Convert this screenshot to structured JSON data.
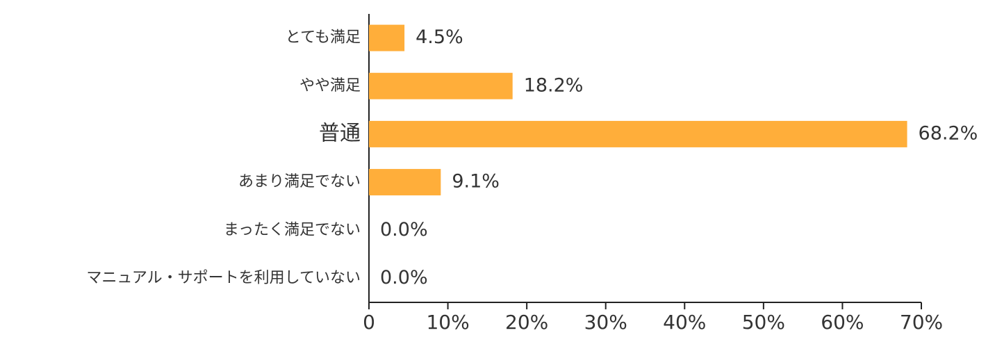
{
  "chart_data": {
    "type": "bar",
    "orientation": "horizontal",
    "categories": [
      "とても満足",
      "やや満足",
      "普通",
      "あまり満足でない",
      "まったく満足でない",
      "マニュアル・サポートを利用していない"
    ],
    "values": [
      4.5,
      18.2,
      68.2,
      9.1,
      0.0,
      0.0
    ],
    "value_labels": [
      "4.5%",
      "18.2%",
      "68.2%",
      "9.1%",
      "0.0%",
      "0.0%"
    ],
    "color": "#ffae3a",
    "xlim": [
      0,
      70
    ],
    "xticks": [
      0,
      {
        "value": 10,
        "label": "10%"
      },
      {
        "value": 20,
        "label": "20%"
      },
      {
        "value": 30,
        "label": "30%"
      },
      {
        "value": 40,
        "label": "40%"
      },
      {
        "value": 50,
        "label": "50%"
      },
      {
        "value": 60,
        "label": "60%"
      },
      {
        "value": 70,
        "label": "70%"
      }
    ]
  }
}
